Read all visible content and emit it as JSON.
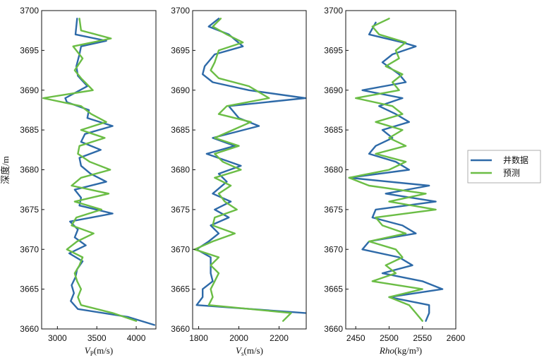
{
  "colors": {
    "well": "#2e6aa8",
    "pred": "#6bbd45",
    "axis": "#111111"
  },
  "legend": {
    "position": "right-center",
    "items": [
      {
        "label": "井数据",
        "color": "#2e6aa8"
      },
      {
        "label": "预测",
        "color": "#6bbd45"
      }
    ]
  },
  "ylabel": "深度/m",
  "chart_data": [
    {
      "type": "line",
      "xlabel_main": "V",
      "xlabel_sub": "P",
      "xlabel_unit": "(m/s)",
      "xlim": [
        2800,
        4250
      ],
      "ylim": [
        3660,
        3700
      ],
      "xticks": [
        "3000",
        "3500",
        "4000"
      ],
      "xtick_values": [
        3000,
        3500,
        4000
      ],
      "yticks": [
        "3660",
        "3665",
        "3670",
        "3675",
        "3680",
        "3685",
        "3690",
        "3695",
        "3700"
      ],
      "ytick_values": [
        3660,
        3665,
        3670,
        3675,
        3680,
        3685,
        3690,
        3695,
        3700
      ],
      "series": [
        {
          "name": "井数据",
          "depth": [
            3699.0,
            3697.0,
            3696.2,
            3695.5,
            3694.5,
            3693.0,
            3691.8,
            3690.5,
            3689.0,
            3688.5,
            3687.5,
            3686.5,
            3685.5,
            3684.5,
            3683.5,
            3682.5,
            3681.5,
            3680.5,
            3679.5,
            3678.5,
            3677.5,
            3676.5,
            3675.5,
            3674.5,
            3673.5,
            3672.5,
            3671.5,
            3670.5,
            3669.5,
            3668.5,
            3667.5,
            3666.5,
            3665.5,
            3664.5,
            3663.5,
            3662.5,
            3661.5,
            3660.5
          ],
          "values": [
            3250,
            3230,
            3620,
            3300,
            3280,
            3240,
            3260,
            3380,
            3100,
            3120,
            3400,
            3380,
            3700,
            3350,
            3300,
            3550,
            3280,
            3300,
            3420,
            3620,
            3220,
            3300,
            3280,
            3700,
            3160,
            3260,
            3220,
            3360,
            3150,
            3320,
            3250,
            3230,
            3180,
            3210,
            3170,
            3260,
            3900,
            4230
          ]
        },
        {
          "name": "预测",
          "depth": [
            3699.0,
            3697.5,
            3696.5,
            3695.5,
            3694.0,
            3692.5,
            3691.5,
            3690.0,
            3689.0,
            3688.0,
            3687.0,
            3686.0,
            3685.0,
            3684.0,
            3683.0,
            3682.0,
            3681.0,
            3680.0,
            3679.0,
            3678.0,
            3677.0,
            3676.0,
            3675.0,
            3674.0,
            3673.0,
            3672.0,
            3671.0,
            3670.0,
            3669.0,
            3668.0,
            3667.0,
            3666.0,
            3665.0,
            3664.0,
            3663.0,
            3662.0,
            3661.0
          ],
          "values": [
            3280,
            3300,
            3680,
            3200,
            3320,
            3220,
            3300,
            3450,
            2820,
            3300,
            3430,
            3620,
            3300,
            3600,
            3280,
            3260,
            3410,
            3670,
            3300,
            3180,
            3650,
            3220,
            3560,
            3240,
            3180,
            3460,
            3250,
            3120,
            3320,
            3280,
            3220,
            3250,
            3300,
            3260,
            3300,
            3700,
            4000
          ]
        }
      ]
    },
    {
      "type": "line",
      "xlabel_main": "V",
      "xlabel_sub": "s",
      "xlabel_unit": "(m/s)",
      "xlim": [
        1770,
        2335
      ],
      "ylim": [
        3660,
        3700
      ],
      "xticks": [
        "1800",
        "2000",
        "2200"
      ],
      "xtick_values": [
        1800,
        2000,
        2200
      ],
      "yticks": [
        "3660",
        "3665",
        "3670",
        "3675",
        "3680",
        "3685",
        "3690",
        "3695",
        "3700"
      ],
      "ytick_values": [
        3660,
        3665,
        3670,
        3675,
        3680,
        3685,
        3690,
        3695,
        3700
      ],
      "series": [
        {
          "name": "井数据",
          "depth": [
            3699.0,
            3698.0,
            3697.0,
            3695.5,
            3694.5,
            3693.0,
            3692.0,
            3691.0,
            3690.0,
            3689.0,
            3688.0,
            3686.5,
            3685.5,
            3684.0,
            3683.0,
            3682.0,
            3680.5,
            3679.5,
            3678.5,
            3677.0,
            3676.0,
            3675.0,
            3674.0,
            3673.0,
            3672.0,
            3671.0,
            3670.0,
            3669.0,
            3668.0,
            3667.0,
            3666.0,
            3665.0,
            3664.0,
            3663.0,
            3662.0
          ],
          "values": [
            1900,
            1850,
            1950,
            2020,
            1880,
            1830,
            1820,
            1870,
            2050,
            2330,
            1950,
            2000,
            2100,
            1870,
            1980,
            1840,
            2010,
            1900,
            1940,
            1870,
            1960,
            1880,
            1950,
            1860,
            1900,
            1850,
            1790,
            1860,
            1860,
            1860,
            1870,
            1820,
            1820,
            1790,
            2330
          ]
        },
        {
          "name": "预测",
          "depth": [
            3699.0,
            3698.0,
            3697.0,
            3696.0,
            3695.0,
            3693.5,
            3692.5,
            3691.5,
            3690.5,
            3689.0,
            3688.0,
            3687.0,
            3686.0,
            3685.0,
            3684.0,
            3683.0,
            3682.0,
            3681.0,
            3680.0,
            3679.0,
            3678.0,
            3677.0,
            3676.0,
            3675.0,
            3674.0,
            3673.0,
            3672.0,
            3671.0,
            3670.0,
            3669.0,
            3668.0,
            3667.0,
            3666.0,
            3665.0,
            3664.0,
            3663.0,
            3662.0,
            3661.0
          ],
          "values": [
            1910,
            1870,
            1940,
            2020,
            1900,
            1880,
            1860,
            1900,
            2050,
            2150,
            1940,
            1900,
            2060,
            1970,
            1880,
            2000,
            1880,
            1920,
            2010,
            1880,
            1960,
            1900,
            1930,
            1990,
            1880,
            1870,
            1980,
            1870,
            1780,
            1900,
            1860,
            1900,
            1880,
            1860,
            1870,
            1850,
            2260,
            2220
          ]
        }
      ]
    },
    {
      "type": "line",
      "xlabel_main": "Rho",
      "xlabel_sub": "",
      "xlabel_unit": "(kg/m³)",
      "xlim": [
        2435,
        2600
      ],
      "ylim": [
        3660,
        3700
      ],
      "xticks": [
        "2450",
        "2500",
        "2550",
        "2600"
      ],
      "xtick_values": [
        2450,
        2500,
        2550,
        2600
      ],
      "yticks": [
        "3660",
        "3665",
        "3670",
        "3675",
        "3680",
        "3685",
        "3690",
        "3695",
        "3700"
      ],
      "ytick_values": [
        3660,
        3665,
        3670,
        3675,
        3680,
        3685,
        3690,
        3695,
        3700
      ],
      "series": [
        {
          "name": "井数据",
          "depth": [
            3698.5,
            3697.0,
            3696.0,
            3695.5,
            3694.5,
            3693.5,
            3692.0,
            3691.0,
            3690.0,
            3689.0,
            3688.0,
            3687.0,
            3686.0,
            3685.0,
            3684.0,
            3683.0,
            3682.0,
            3681.0,
            3680.0,
            3679.0,
            3678.0,
            3677.0,
            3676.0,
            3675.0,
            3674.0,
            3673.0,
            3672.0,
            3671.0,
            3670.0,
            3669.0,
            3668.0,
            3667.0,
            3666.0,
            3665.0,
            3664.0,
            3663.0,
            3662.0,
            3661.0
          ],
          "values": [
            2480,
            2470,
            2520,
            2540,
            2505,
            2490,
            2515,
            2525,
            2460,
            2520,
            2485,
            2510,
            2530,
            2490,
            2505,
            2480,
            2470,
            2510,
            2530,
            2440,
            2560,
            2495,
            2570,
            2480,
            2475,
            2520,
            2540,
            2470,
            2460,
            2515,
            2535,
            2490,
            2550,
            2580,
            2500,
            2560,
            2560,
            2555
          ]
        },
        {
          "name": "预测",
          "depth": [
            3699.0,
            3698.0,
            3697.0,
            3696.0,
            3695.0,
            3694.0,
            3693.0,
            3692.0,
            3691.0,
            3690.0,
            3689.0,
            3688.0,
            3687.0,
            3686.0,
            3685.0,
            3684.0,
            3683.0,
            3682.0,
            3681.0,
            3680.0,
            3679.0,
            3678.0,
            3677.0,
            3676.0,
            3675.0,
            3674.0,
            3673.0,
            3672.0,
            3671.0,
            3670.0,
            3669.0,
            3668.0,
            3667.0,
            3666.0,
            3665.0,
            3664.0,
            3663.0,
            3662.0,
            3661.0
          ],
          "values": [
            2500,
            2475,
            2485,
            2525,
            2510,
            2515,
            2495,
            2520,
            2505,
            2515,
            2450,
            2505,
            2520,
            2480,
            2520,
            2500,
            2525,
            2480,
            2525,
            2500,
            2440,
            2470,
            2555,
            2500,
            2570,
            2480,
            2490,
            2525,
            2470,
            2510,
            2520,
            2495,
            2510,
            2475,
            2550,
            2500,
            2530,
            2540,
            2550
          ]
        }
      ]
    }
  ]
}
